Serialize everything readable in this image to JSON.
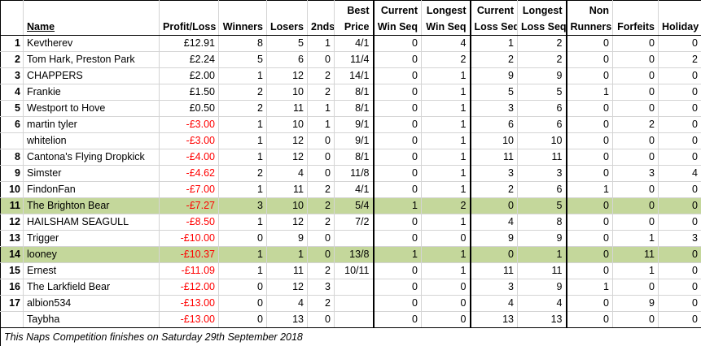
{
  "table": {
    "headers": [
      [
        "Name"
      ],
      [
        "Profit/Loss"
      ],
      [
        "Winners"
      ],
      [
        "Losers"
      ],
      [
        "2nds"
      ],
      [
        "Best",
        "Price"
      ],
      [
        "Current",
        "Win Seq"
      ],
      [
        "Longest",
        "Win Seq"
      ],
      [
        "Current",
        "Loss Seq"
      ],
      [
        "Longest",
        "Loss Seq"
      ],
      [
        "Non",
        "Runners"
      ],
      [
        "Forfeits"
      ],
      [
        "Holiday"
      ]
    ],
    "rows": [
      {
        "cells": [
          1,
          "Kevtherev",
          "£12.91",
          8,
          5,
          1,
          "4/1",
          0,
          4,
          1,
          2,
          0,
          0,
          0
        ]
      },
      {
        "cells": [
          2,
          "Tom Hark, Preston Park",
          "£2.24",
          5,
          6,
          0,
          "11/4",
          0,
          2,
          2,
          2,
          0,
          0,
          2
        ]
      },
      {
        "cells": [
          3,
          "CHAPPERS",
          "£2.00",
          1,
          12,
          2,
          "14/1",
          0,
          1,
          9,
          9,
          0,
          0,
          0
        ]
      },
      {
        "cells": [
          4,
          "Frankie",
          "£1.50",
          2,
          10,
          2,
          "8/1",
          0,
          1,
          5,
          5,
          1,
          0,
          0
        ]
      },
      {
        "cells": [
          5,
          "Westport to Hove",
          "£0.50",
          2,
          11,
          1,
          "8/1",
          0,
          1,
          3,
          6,
          0,
          0,
          0
        ]
      },
      {
        "cells": [
          6,
          "martin tyler",
          "-£3.00",
          1,
          10,
          1,
          "9/1",
          0,
          1,
          6,
          6,
          0,
          2,
          0
        ]
      },
      {
        "cells": [
          null,
          "whitelion",
          "-£3.00",
          1,
          12,
          0,
          "9/1",
          0,
          1,
          10,
          10,
          0,
          0,
          0
        ]
      },
      {
        "cells": [
          8,
          "Cantona's Flying Dropkick",
          "-£4.00",
          1,
          12,
          0,
          "8/1",
          0,
          1,
          11,
          11,
          0,
          0,
          0
        ]
      },
      {
        "cells": [
          9,
          "Simster",
          "-£4.62",
          2,
          4,
          0,
          "11/8",
          0,
          1,
          3,
          3,
          0,
          3,
          4
        ]
      },
      {
        "cells": [
          10,
          "FindonFan",
          "-£7.00",
          1,
          11,
          2,
          "4/1",
          0,
          1,
          2,
          6,
          1,
          0,
          0
        ]
      },
      {
        "cells": [
          11,
          "The Brighton Bear",
          "-£7.27",
          3,
          10,
          2,
          "5/4",
          1,
          2,
          0,
          5,
          0,
          0,
          0
        ],
        "highlight": true
      },
      {
        "cells": [
          12,
          "HAILSHAM SEAGULL",
          "-£8.50",
          1,
          12,
          2,
          "7/2",
          0,
          1,
          4,
          8,
          0,
          0,
          0
        ]
      },
      {
        "cells": [
          13,
          "Trigger",
          "-£10.00",
          0,
          9,
          0,
          null,
          0,
          0,
          9,
          9,
          0,
          1,
          3
        ]
      },
      {
        "cells": [
          14,
          "looney",
          "-£10.37",
          1,
          1,
          0,
          "13/8",
          1,
          1,
          0,
          1,
          0,
          11,
          0
        ],
        "highlight": true
      },
      {
        "cells": [
          15,
          "Ernest",
          "-£11.09",
          1,
          11,
          2,
          "10/11",
          0,
          1,
          11,
          11,
          0,
          1,
          0
        ]
      },
      {
        "cells": [
          16,
          "The Larkfield Bear",
          "-£12.00",
          0,
          12,
          3,
          null,
          0,
          0,
          3,
          9,
          1,
          0,
          0
        ]
      },
      {
        "cells": [
          17,
          "albion534",
          "-£13.00",
          0,
          4,
          2,
          null,
          0,
          0,
          4,
          4,
          0,
          9,
          0
        ]
      },
      {
        "cells": [
          null,
          "Taybha",
          "-£13.00",
          0,
          13,
          0,
          null,
          0,
          0,
          13,
          13,
          0,
          0,
          0
        ]
      }
    ]
  },
  "footer": "This Naps Competition finishes on Saturday 29th September 2018"
}
